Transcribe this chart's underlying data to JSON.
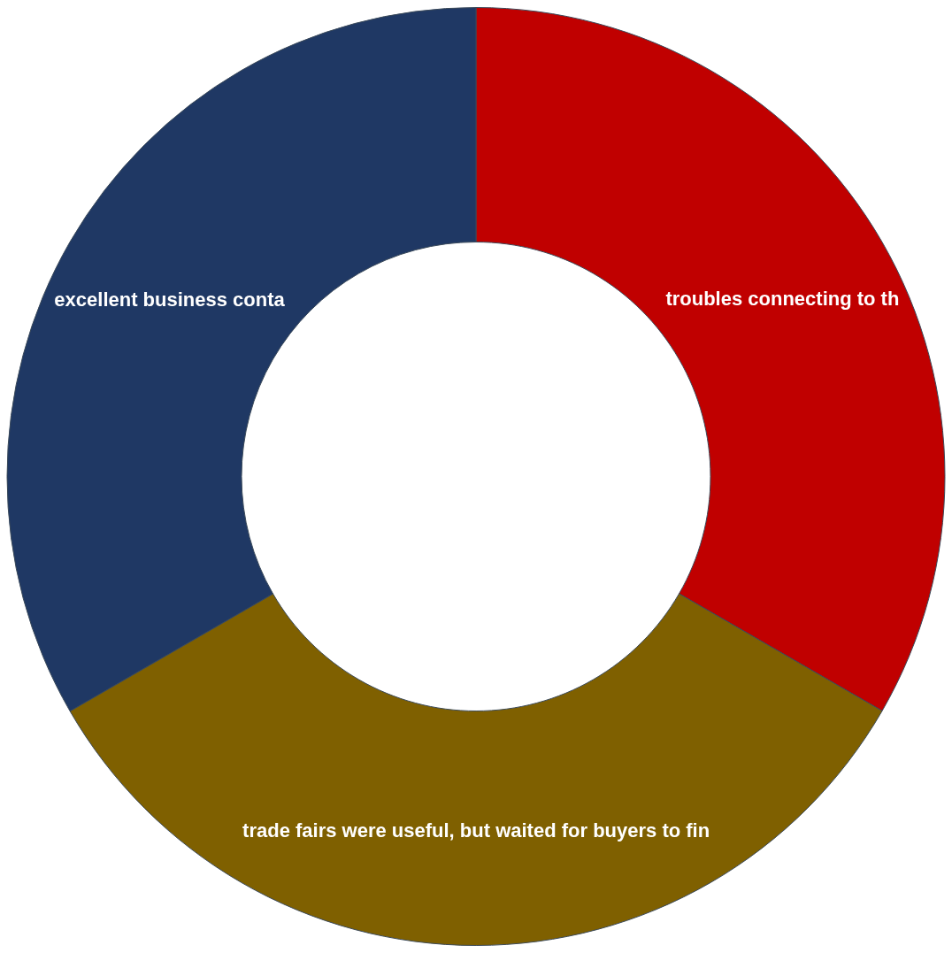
{
  "chart_data": {
    "type": "donut",
    "categories": [
      "troubles connecting to th",
      "trade fairs were useful, but waited for buyers to fin",
      "excellent business conta"
    ],
    "values": [
      33.33,
      33.33,
      33.34
    ],
    "colors": [
      "#c00000",
      "#7f6000",
      "#1f3864"
    ]
  }
}
